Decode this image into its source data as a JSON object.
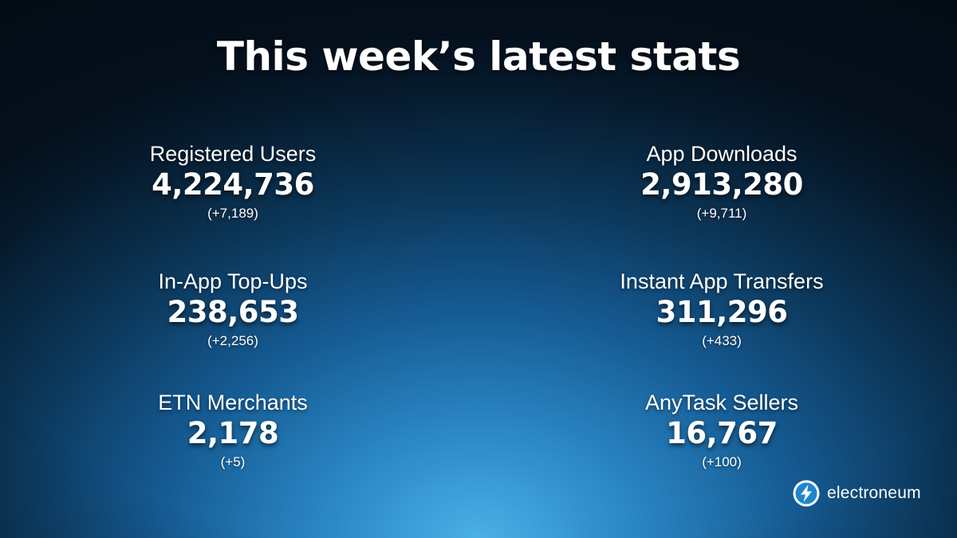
{
  "title": "This week’s latest stats",
  "stats": {
    "registered_users": {
      "label": "Registered Users",
      "value": "4,224,736",
      "delta": "(+7,189)"
    },
    "app_downloads": {
      "label": "App Downloads",
      "value": "2,913,280",
      "delta": "(+9,711)"
    },
    "in_app_topups": {
      "label": "In-App Top-Ups",
      "value": "238,653",
      "delta": "(+2,256)"
    },
    "instant_app_transfers": {
      "label": "Instant App Transfers",
      "value": "311,296",
      "delta": "(+433)"
    },
    "etn_merchants": {
      "label": "ETN Merchants",
      "value": "2,178",
      "delta": "(+5)"
    },
    "anytask_sellers": {
      "label": "AnyTask Sellers",
      "value": "16,767",
      "delta": "(+100)"
    }
  },
  "brand": {
    "name": "electroneum",
    "icon": "electroneum-logo-icon"
  },
  "colors": {
    "background_center": "#4ab0e6",
    "background_edge": "#04111e",
    "text": "#ffffff"
  }
}
